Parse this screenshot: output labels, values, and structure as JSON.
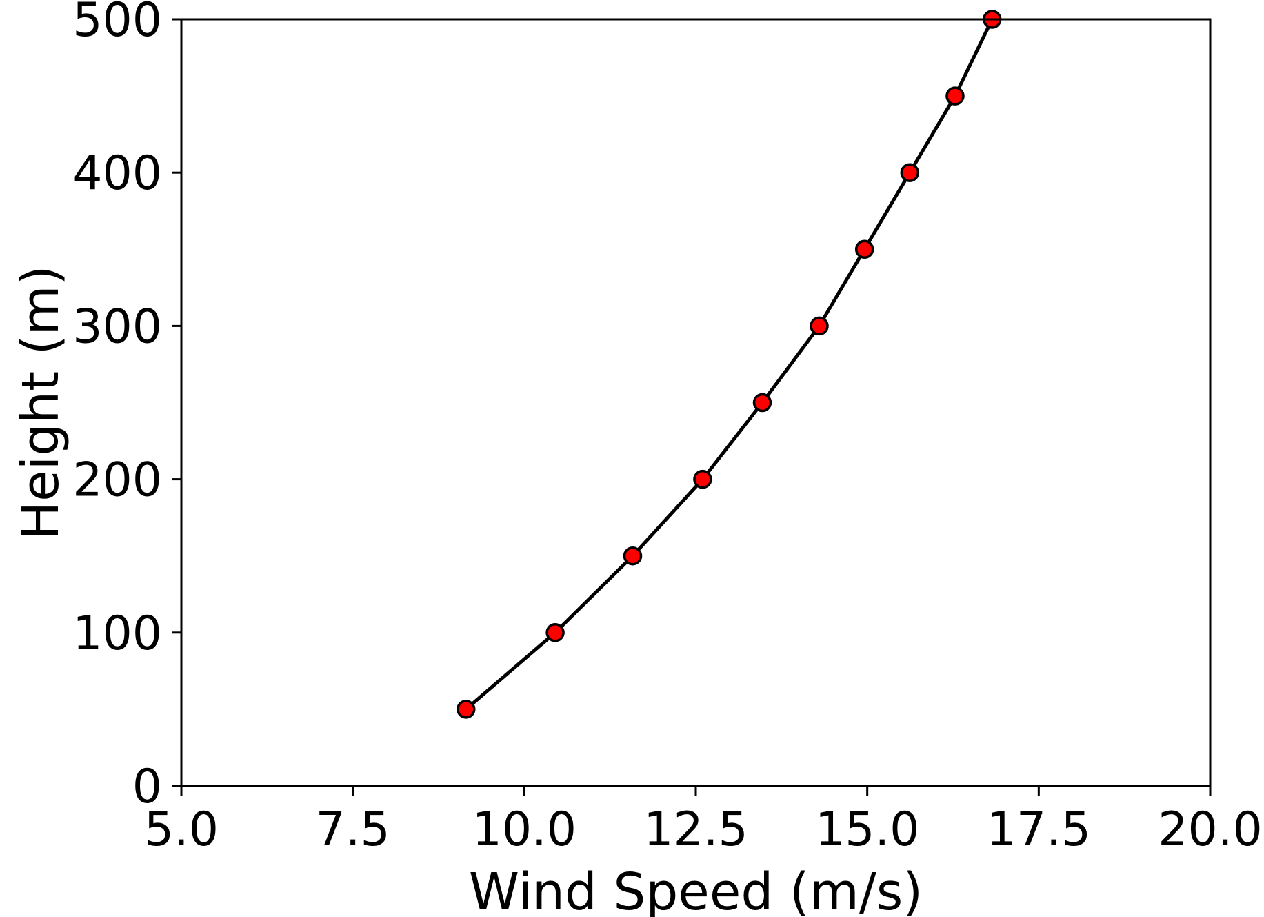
{
  "chart_data": {
    "type": "line",
    "title": "",
    "xlabel": "Wind Speed (m/s)",
    "ylabel": "Height (m)",
    "xlim": [
      5.0,
      20.0
    ],
    "ylim": [
      0,
      500
    ],
    "x_ticks": [
      "5.0",
      "7.5",
      "10.0",
      "12.5",
      "15.0",
      "17.5",
      "20.0"
    ],
    "y_ticks": [
      "0",
      "100",
      "200",
      "300",
      "400",
      "500"
    ],
    "grid": false,
    "legend": "none",
    "series": [
      {
        "x": [
          9.15,
          10.45,
          11.58,
          12.6,
          13.47,
          14.3,
          14.96,
          15.62,
          16.28,
          16.82
        ],
        "y": [
          50,
          100,
          150,
          200,
          250,
          300,
          350,
          400,
          450,
          500
        ],
        "line_color": "#000000",
        "marker_fill": "#ff0000",
        "marker_edge": "#000000"
      }
    ]
  }
}
